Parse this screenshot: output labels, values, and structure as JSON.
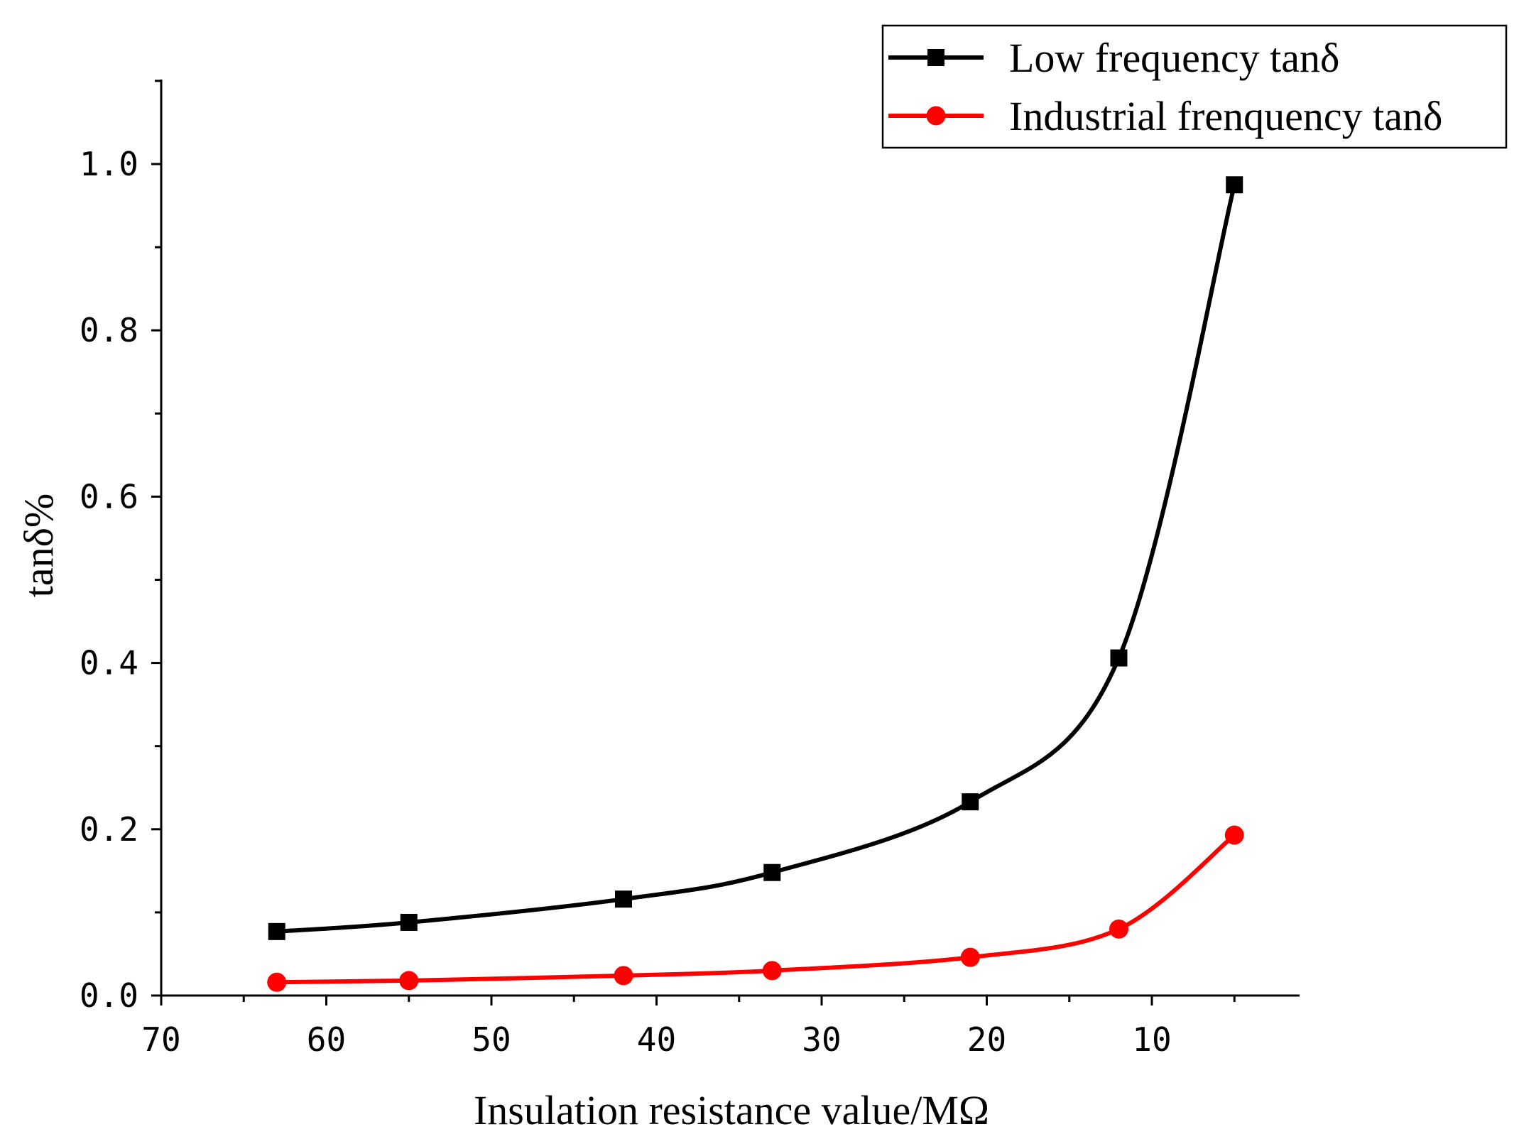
{
  "chart_data": {
    "type": "line",
    "title": "",
    "xlabel": "Insulation resistance value/MΩ",
    "ylabel": "tanδ%",
    "xlim": [
      70,
      1
    ],
    "ylim": [
      0,
      1.1
    ],
    "x_ticks": [
      70,
      60,
      50,
      40,
      30,
      20,
      10
    ],
    "x_tick_labels": [
      "70",
      "60",
      "50",
      "40",
      "30",
      "20",
      "10"
    ],
    "y_ticks": [
      0.0,
      0.2,
      0.4,
      0.6,
      0.8,
      1.0
    ],
    "y_tick_labels": [
      "0.0",
      "0.2",
      "0.4",
      "0.6",
      "0.8",
      "1.0"
    ],
    "legend_position": "top-right",
    "series": [
      {
        "name": "Low frequency tanδ",
        "color": "#000000",
        "marker": "square",
        "x": [
          63,
          55,
          42,
          33,
          21,
          12,
          5
        ],
        "y": [
          0.077,
          0.088,
          0.116,
          0.148,
          0.233,
          0.406,
          0.975
        ]
      },
      {
        "name": "Industrial frenquency tanδ",
        "color": "#ff0000",
        "marker": "circle",
        "x": [
          63,
          55,
          42,
          33,
          21,
          12,
          5
        ],
        "y": [
          0.016,
          0.018,
          0.024,
          0.03,
          0.046,
          0.08,
          0.193
        ]
      }
    ]
  }
}
